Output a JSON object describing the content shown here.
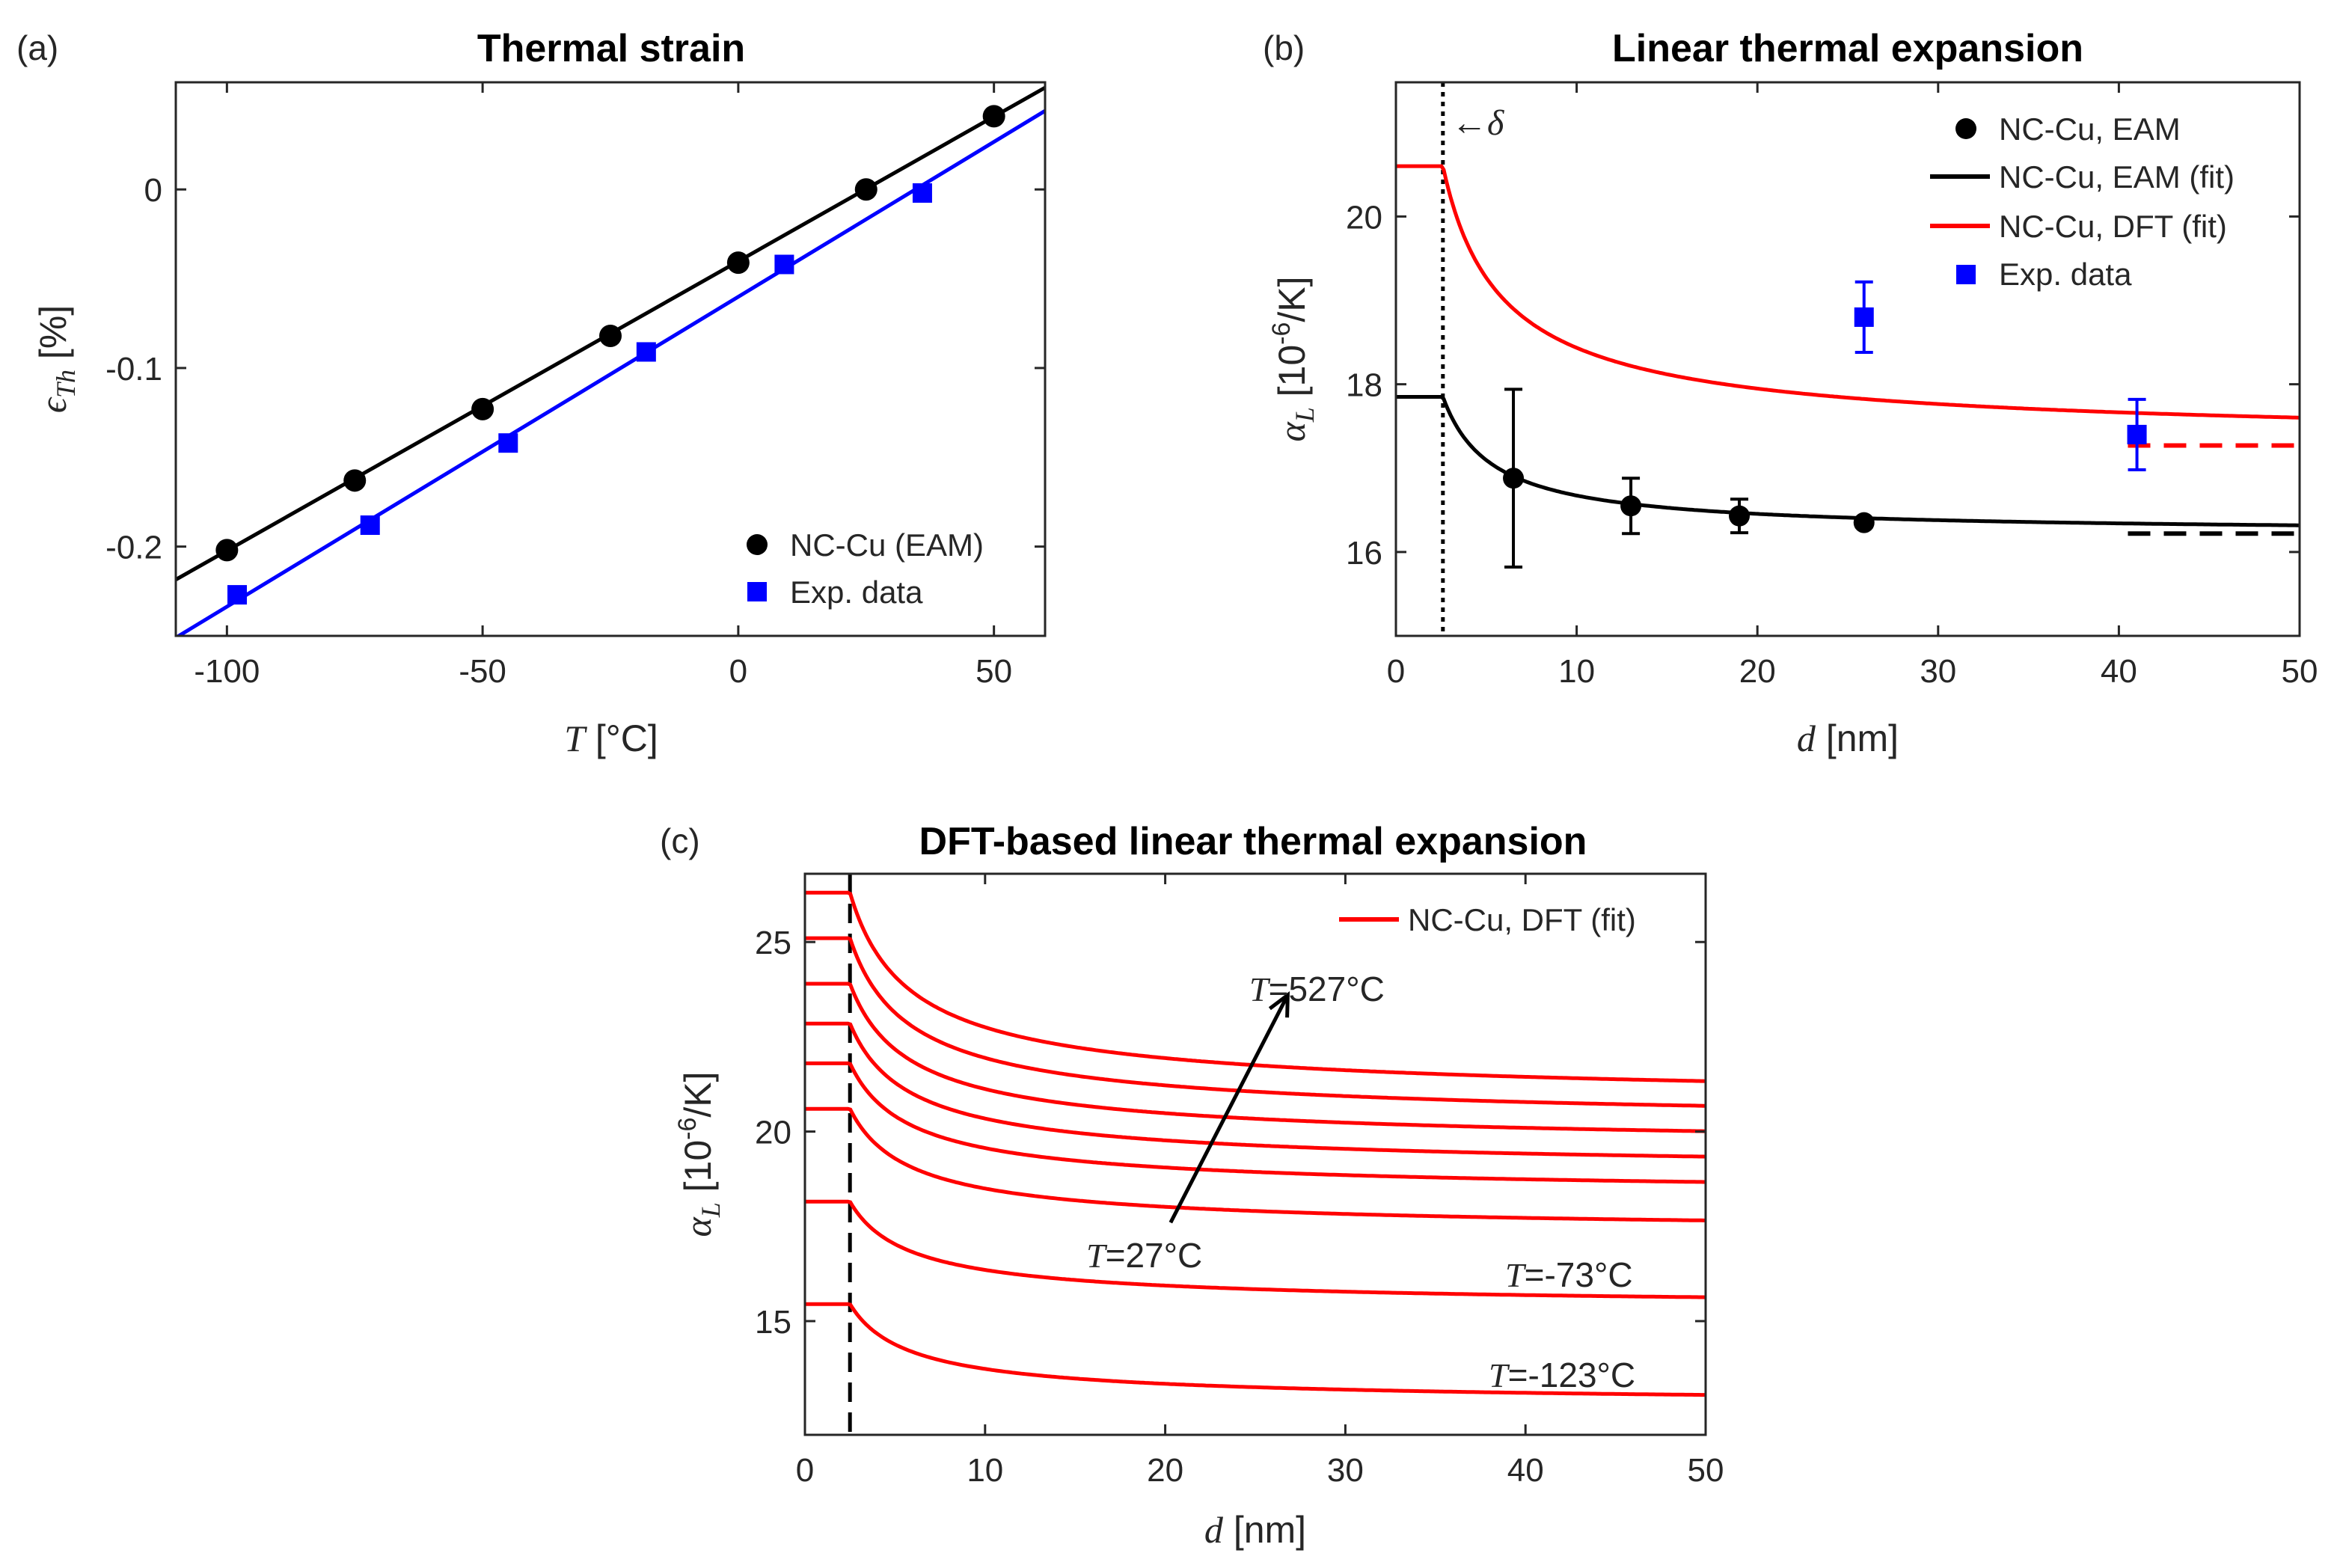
{
  "chart_data": [
    {
      "id": "a",
      "type": "scatter",
      "panel_label": "(a)",
      "title": "Thermal strain",
      "xlabel": {
        "symbol": "T",
        "unit": " [°C]"
      },
      "ylabel": {
        "symbol": "ϵ",
        "subscript": "Th",
        "unit": " [%]"
      },
      "xlim": [
        -110,
        60
      ],
      "ylim": [
        -0.25,
        0.06
      ],
      "xticks": [
        -100,
        -50,
        0,
        50
      ],
      "xtick_labels": [
        "-100",
        "-50",
        "0",
        "50"
      ],
      "yticks": [
        -0.2,
        -0.1,
        0
      ],
      "ytick_labels": [
        "-0.2",
        "-0.1",
        "0"
      ],
      "grid": false,
      "legend_position": "bottom-right",
      "series": [
        {
          "name": "NC-Cu (EAM)",
          "marker": "circle",
          "color": "#000000",
          "x": [
            -100,
            -75,
            -50,
            -25,
            0,
            25,
            50
          ],
          "y": [
            -0.202,
            -0.163,
            -0.123,
            -0.082,
            -0.041,
            0.0,
            0.041
          ],
          "fit_line": {
            "x": [
              -110,
              60
            ],
            "y": [
              -0.2185,
              0.057
            ]
          }
        },
        {
          "name": "Exp. data",
          "marker": "square",
          "color": "#0000ff",
          "x": [
            -98,
            -72,
            -45,
            -18,
            9,
            36
          ],
          "y": [
            -0.227,
            -0.188,
            -0.142,
            -0.091,
            -0.042,
            -0.002
          ],
          "fit_line": {
            "x": [
              -110,
              60
            ],
            "y": [
              -0.251,
              0.044
            ]
          }
        }
      ]
    },
    {
      "id": "b",
      "type": "line",
      "panel_label": "(b)",
      "title": "Linear thermal expansion",
      "xlabel": {
        "symbol": "d",
        "unit": " [nm]"
      },
      "ylabel": {
        "symbol": "α",
        "subscript": "L",
        "unit_pre": " [10",
        "unit_exp": "-6",
        "unit_post": "/K]"
      },
      "xlim": [
        0,
        50
      ],
      "ylim": [
        15,
        21.6
      ],
      "xticks": [
        0,
        10,
        20,
        30,
        40,
        50
      ],
      "xtick_labels": [
        "0",
        "10",
        "20",
        "30",
        "40",
        "50"
      ],
      "yticks": [
        16,
        18,
        20
      ],
      "ytick_labels": [
        "16",
        "18",
        "20"
      ],
      "grid": false,
      "legend_position": "top-right",
      "delta": {
        "x": 2.6,
        "label": "←δ"
      },
      "curves": [
        {
          "name": "NC-Cu, EAM (fit)",
          "color": "#000000",
          "plateau": 17.85,
          "asymptote": 16.22,
          "k": 1.26,
          "dashed_limit": [
            40.5,
            50,
            16.22
          ]
        },
        {
          "name": "NC-Cu, DFT (fit)",
          "color": "#ff0000",
          "plateau": 20.6,
          "asymptote": 17.27,
          "k": 2.6,
          "dashed_limit": [
            40.5,
            50,
            17.27
          ]
        }
      ],
      "points": [
        {
          "name": "NC-Cu, EAM",
          "marker": "circle",
          "color": "#000000",
          "x": [
            6.5,
            13,
            19,
            25.9
          ],
          "y": [
            16.88,
            16.55,
            16.43,
            16.35
          ],
          "err": [
            1.06,
            0.33,
            0.2,
            0.05
          ]
        },
        {
          "name": "Exp. data",
          "marker": "square",
          "color": "#0000ff",
          "x": [
            25.9,
            41
          ],
          "y": [
            18.8,
            17.4
          ],
          "err": [
            0.42,
            0.42
          ]
        }
      ],
      "legend": [
        {
          "label": "NC-Cu, EAM",
          "kind": "circle",
          "color": "#000000"
        },
        {
          "label": "NC-Cu, EAM (fit)",
          "kind": "line",
          "color": "#000000"
        },
        {
          "label": "NC-Cu, DFT (fit)",
          "kind": "line",
          "color": "#ff0000"
        },
        {
          "label": "Exp. data",
          "kind": "square",
          "color": "#0000ff"
        }
      ]
    },
    {
      "id": "c",
      "type": "line",
      "panel_label": "(c)",
      "title": "DFT-based linear thermal expansion",
      "xlabel": {
        "symbol": "d",
        "unit": " [nm]"
      },
      "ylabel": {
        "symbol": "α",
        "subscript": "L",
        "unit_pre": " [10",
        "unit_exp": "-6",
        "unit_post": "/K]"
      },
      "xlim": [
        0,
        50
      ],
      "ylim": [
        12,
        26.8
      ],
      "xticks": [
        0,
        10,
        20,
        30,
        40,
        50
      ],
      "xtick_labels": [
        "0",
        "10",
        "20",
        "30",
        "40",
        "50"
      ],
      "yticks": [
        15,
        20,
        25
      ],
      "ytick_labels": [
        "15",
        "20",
        "25"
      ],
      "grid": false,
      "legend_position": "top-right",
      "delta_x": 2.5,
      "series_name": "NC-Cu, DFT (fit)",
      "color": "#ff0000",
      "curves": [
        {
          "plateau": 15.45,
          "asymptote": 12.74
        },
        {
          "plateau": 18.15,
          "asymptote": 15.3
        },
        {
          "plateau": 20.6,
          "asymptote": 17.27
        },
        {
          "plateau": 21.8,
          "asymptote": 18.26
        },
        {
          "plateau": 22.85,
          "asymptote": 18.88
        },
        {
          "plateau": 23.9,
          "asymptote": 19.5
        },
        {
          "plateau": 25.1,
          "asymptote": 20.1
        },
        {
          "plateau": 26.3,
          "asymptote": 20.68
        }
      ],
      "annotations": [
        {
          "symbol": "T",
          "text": "=527°C"
        },
        {
          "symbol": "T",
          "text": "=27°C"
        },
        {
          "symbol": "T",
          "text": "=-73°C"
        },
        {
          "symbol": "T",
          "text": "=-123°C"
        }
      ],
      "arrow": {
        "from": [
          20.3,
          17.6
        ],
        "to": [
          26.8,
          23.6
        ]
      }
    }
  ]
}
